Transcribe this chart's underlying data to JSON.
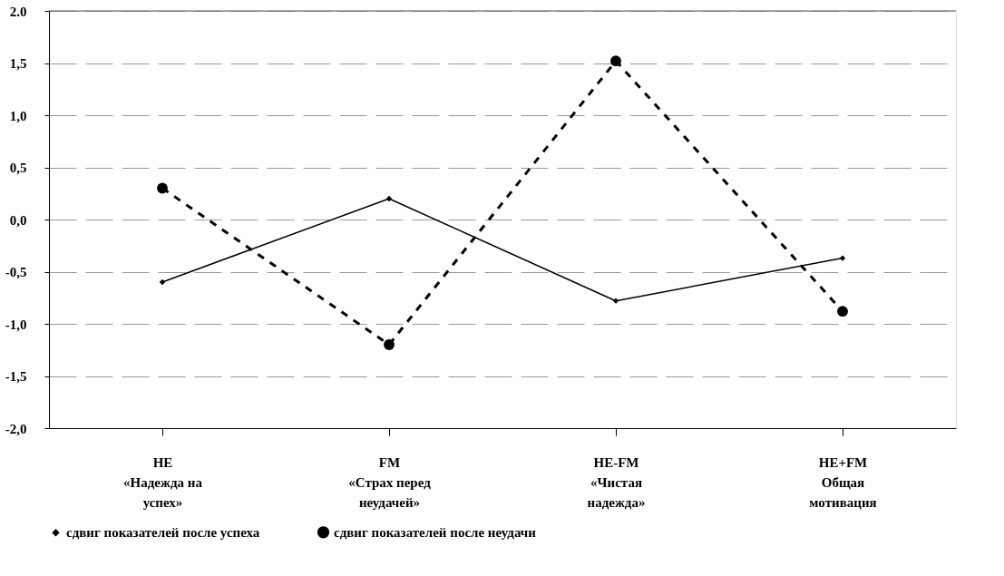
{
  "chart_data": {
    "type": "line",
    "categories": [
      "HE\n«Надежда на\nуспех»",
      "FM\n«Страх перед\nнеудачей»",
      "HE-FM\n«Чистая\nнадежда»",
      "HE+FM\nОбщая\nмотивация"
    ],
    "series": [
      {
        "name": "сдвиг показателей после успеха",
        "color": "#000000",
        "marker": "diamond",
        "line_style": "solid",
        "values": [
          -0.6,
          0.2,
          -0.78,
          -0.37
        ]
      },
      {
        "name": "сдвиг показателей после неудачи",
        "color": "#000000",
        "marker": "circle",
        "line_style": "dashed",
        "values": [
          0.3,
          -1.2,
          1.52,
          -0.88
        ]
      }
    ],
    "ylim": [
      -2,
      2
    ],
    "yticks": [
      {
        "value": -2,
        "label": "-2,0"
      },
      {
        "value": -1.5,
        "label": "-1,5"
      },
      {
        "value": -1,
        "label": "-1,0"
      },
      {
        "value": -0.5,
        "label": "-0,5"
      },
      {
        "value": 0,
        "label": "0,0"
      },
      {
        "value": 0.5,
        "label": "0,5"
      },
      {
        "value": 1,
        "label": "1,0"
      },
      {
        "value": 1.5,
        "label": "1,5"
      },
      {
        "value": 2,
        "label": "2.0"
      }
    ],
    "grid": "y",
    "legend": "bottom"
  }
}
